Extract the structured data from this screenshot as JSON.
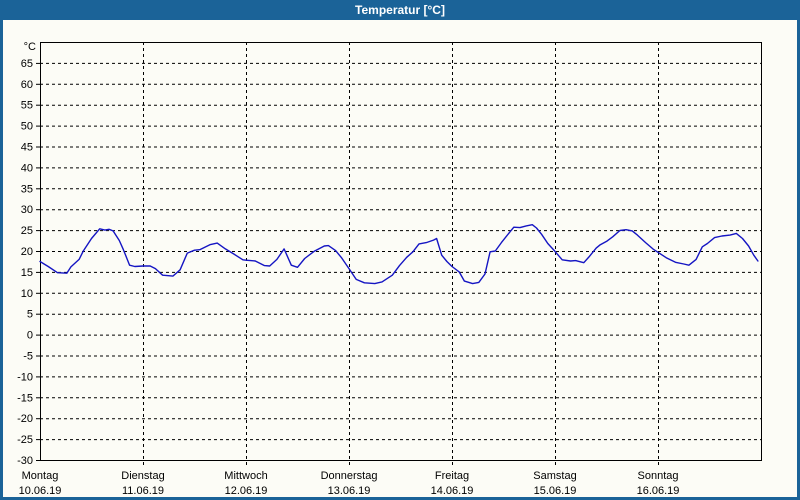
{
  "window": {
    "title": "Temperatur [°C]"
  },
  "colors": {
    "titlebar": "#1B6398",
    "frame": "#1B6398",
    "content_background": "#FCFCF6",
    "plot_border": "#000000",
    "grid": "#000000",
    "line": "#1515C3",
    "label_text": "#000000"
  },
  "chart_data": {
    "type": "line",
    "title": "Temperatur [°C]",
    "ylabel": "°C",
    "xlabel": "",
    "ylim": [
      -30,
      70
    ],
    "ytick_step": 5,
    "ytick_label_min": -30,
    "ytick_label_max": 65,
    "grid": "dashed horizontal every 5 °C, dashed vertical at each day boundary",
    "legend_position": "none",
    "days": [
      {
        "name": "Montag",
        "date": "10.06.19"
      },
      {
        "name": "Dienstag",
        "date": "11.06.19"
      },
      {
        "name": "Mittwoch",
        "date": "12.06.19"
      },
      {
        "name": "Donnerstag",
        "date": "13.06.19"
      },
      {
        "name": "Freitag",
        "date": "14.06.19"
      },
      {
        "name": "Samstag",
        "date": "15.06.19"
      },
      {
        "name": "Sonntag",
        "date": "16.06.19"
      }
    ],
    "series": [
      {
        "name": "Temperatur",
        "unit": "°C",
        "x_unit": "days since Montag 10.06.19 00:00",
        "points": [
          [
            0.0,
            17.5
          ],
          [
            0.08,
            16.3
          ],
          [
            0.17,
            14.8
          ],
          [
            0.26,
            14.7
          ],
          [
            0.3,
            16.2
          ],
          [
            0.38,
            18.0
          ],
          [
            0.42,
            20.0
          ],
          [
            0.5,
            23.0
          ],
          [
            0.58,
            25.3
          ],
          [
            0.63,
            25.0
          ],
          [
            0.67,
            25.2
          ],
          [
            0.71,
            24.8
          ],
          [
            0.77,
            22.5
          ],
          [
            0.81,
            20.3
          ],
          [
            0.87,
            16.6
          ],
          [
            0.92,
            16.3
          ],
          [
            1.0,
            16.4
          ],
          [
            1.07,
            16.4
          ],
          [
            1.12,
            15.8
          ],
          [
            1.19,
            14.2
          ],
          [
            1.29,
            14.0
          ],
          [
            1.36,
            15.5
          ],
          [
            1.43,
            19.5
          ],
          [
            1.5,
            20.2
          ],
          [
            1.55,
            20.3
          ],
          [
            1.65,
            21.5
          ],
          [
            1.72,
            21.9
          ],
          [
            1.8,
            20.5
          ],
          [
            1.88,
            19.3
          ],
          [
            1.97,
            17.9
          ],
          [
            2.0,
            17.8
          ],
          [
            2.09,
            17.6
          ],
          [
            2.18,
            16.5
          ],
          [
            2.23,
            16.4
          ],
          [
            2.3,
            18.0
          ],
          [
            2.37,
            20.5
          ],
          [
            2.44,
            16.6
          ],
          [
            2.5,
            16.1
          ],
          [
            2.57,
            18.2
          ],
          [
            2.66,
            19.9
          ],
          [
            2.76,
            21.2
          ],
          [
            2.8,
            21.3
          ],
          [
            2.87,
            20.1
          ],
          [
            2.93,
            18.3
          ],
          [
            3.0,
            15.8
          ],
          [
            3.07,
            13.2
          ],
          [
            3.15,
            12.4
          ],
          [
            3.25,
            12.2
          ],
          [
            3.32,
            12.6
          ],
          [
            3.42,
            14.2
          ],
          [
            3.49,
            16.5
          ],
          [
            3.56,
            18.5
          ],
          [
            3.62,
            19.8
          ],
          [
            3.68,
            21.7
          ],
          [
            3.75,
            22.0
          ],
          [
            3.82,
            22.6
          ],
          [
            3.85,
            23.0
          ],
          [
            3.9,
            19.0
          ],
          [
            3.95,
            17.5
          ],
          [
            4.0,
            16.3
          ],
          [
            4.07,
            15.0
          ],
          [
            4.12,
            12.8
          ],
          [
            4.2,
            12.2
          ],
          [
            4.26,
            12.5
          ],
          [
            4.32,
            14.5
          ],
          [
            4.37,
            19.8
          ],
          [
            4.42,
            20.0
          ],
          [
            4.48,
            22.0
          ],
          [
            4.55,
            24.2
          ],
          [
            4.6,
            25.7
          ],
          [
            4.66,
            25.6
          ],
          [
            4.72,
            26.0
          ],
          [
            4.78,
            26.3
          ],
          [
            4.82,
            25.5
          ],
          [
            4.87,
            24.0
          ],
          [
            4.93,
            21.8
          ],
          [
            5.0,
            19.9
          ],
          [
            5.07,
            17.9
          ],
          [
            5.15,
            17.6
          ],
          [
            5.2,
            17.7
          ],
          [
            5.28,
            17.2
          ],
          [
            5.33,
            18.6
          ],
          [
            5.4,
            20.7
          ],
          [
            5.44,
            21.5
          ],
          [
            5.5,
            22.3
          ],
          [
            5.56,
            23.4
          ],
          [
            5.63,
            24.9
          ],
          [
            5.69,
            25.1
          ],
          [
            5.75,
            24.8
          ],
          [
            5.8,
            23.8
          ],
          [
            5.88,
            22.0
          ],
          [
            5.95,
            20.5
          ],
          [
            6.0,
            19.7
          ],
          [
            6.08,
            18.4
          ],
          [
            6.17,
            17.3
          ],
          [
            6.25,
            16.9
          ],
          [
            6.3,
            16.6
          ],
          [
            6.37,
            18.0
          ],
          [
            6.43,
            21.0
          ],
          [
            6.48,
            21.8
          ],
          [
            6.55,
            23.2
          ],
          [
            6.62,
            23.6
          ],
          [
            6.7,
            23.8
          ],
          [
            6.76,
            24.2
          ],
          [
            6.82,
            23.0
          ],
          [
            6.88,
            21.2
          ],
          [
            6.93,
            19.0
          ],
          [
            6.97,
            17.6
          ]
        ]
      }
    ]
  }
}
